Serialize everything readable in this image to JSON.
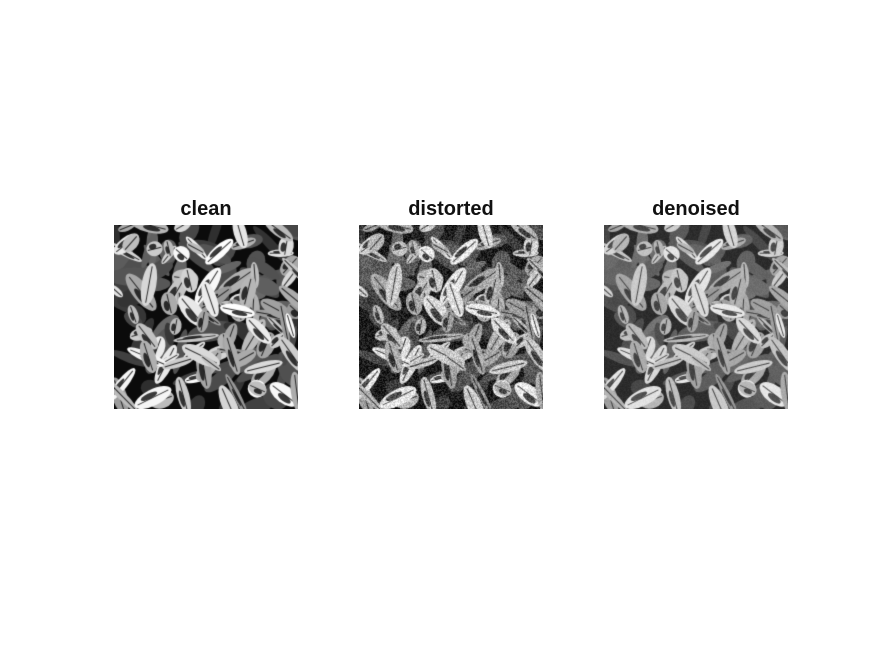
{
  "figure": {
    "panels": [
      {
        "title": "clean"
      },
      {
        "title": "distorted"
      },
      {
        "title": "denoised"
      }
    ]
  }
}
